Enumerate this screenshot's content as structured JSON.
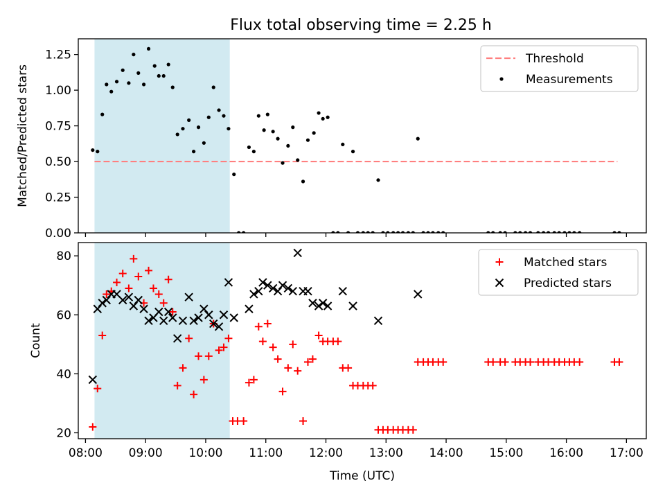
{
  "figure": {
    "title": "Flux total observing time = 2.25 h"
  },
  "colors": {
    "highlight": "#add8e6",
    "threshold": "#ff7f7f",
    "measurements": "#000000",
    "matched": "#ff0000",
    "predicted": "#000000"
  },
  "chart_data": [
    {
      "type": "scatter",
      "title": "Flux total observing time = 2.25 h",
      "xlabel": "",
      "ylabel": "Matched/Predicted stars",
      "x_unit": "hours UTC",
      "xlim": [
        7.88,
        17.33
      ],
      "ylim": [
        0,
        1.36
      ],
      "yticks": [
        0,
        0.25,
        0.5,
        0.75,
        1.0,
        1.25
      ],
      "ytick_labels": [
        "0.00",
        "0.25",
        "0.50",
        "0.75",
        "1.00",
        "1.25"
      ],
      "highlight_span": [
        8.15,
        10.4
      ],
      "legend_position": "top-right",
      "series": [
        {
          "name": "Threshold",
          "kind": "dashed-line",
          "color": "#ff7f7f",
          "points": [
            [
              8.15,
              0.5
            ],
            [
              16.85,
              0.5
            ]
          ]
        },
        {
          "name": "Measurements",
          "kind": "dot",
          "color": "#000000",
          "points": [
            [
              8.12,
              0.58
            ],
            [
              8.2,
              0.57
            ],
            [
              8.28,
              0.83
            ],
            [
              8.35,
              1.04
            ],
            [
              8.43,
              0.99
            ],
            [
              8.52,
              1.06
            ],
            [
              8.62,
              1.14
            ],
            [
              8.72,
              1.05
            ],
            [
              8.8,
              1.25
            ],
            [
              8.88,
              1.12
            ],
            [
              8.97,
              1.04
            ],
            [
              9.05,
              1.29
            ],
            [
              9.15,
              1.17
            ],
            [
              9.22,
              1.1
            ],
            [
              9.3,
              1.1
            ],
            [
              9.38,
              1.18
            ],
            [
              9.45,
              1.02
            ],
            [
              9.53,
              0.69
            ],
            [
              9.62,
              0.73
            ],
            [
              9.72,
              0.79
            ],
            [
              9.8,
              0.57
            ],
            [
              9.88,
              0.74
            ],
            [
              9.97,
              0.63
            ],
            [
              10.05,
              0.81
            ],
            [
              10.13,
              1.02
            ],
            [
              10.22,
              0.86
            ],
            [
              10.3,
              0.82
            ],
            [
              10.38,
              0.73
            ],
            [
              10.47,
              0.41
            ],
            [
              10.55,
              0.0
            ],
            [
              10.63,
              0.0
            ],
            [
              10.72,
              0.6
            ],
            [
              10.8,
              0.57
            ],
            [
              10.88,
              0.82
            ],
            [
              10.97,
              0.72
            ],
            [
              11.03,
              0.83
            ],
            [
              11.12,
              0.71
            ],
            [
              11.2,
              0.66
            ],
            [
              11.28,
              0.49
            ],
            [
              11.37,
              0.61
            ],
            [
              11.45,
              0.74
            ],
            [
              11.53,
              0.51
            ],
            [
              11.62,
              0.36
            ],
            [
              11.7,
              0.65
            ],
            [
              11.8,
              0.7
            ],
            [
              11.88,
              0.84
            ],
            [
              11.95,
              0.8
            ],
            [
              12.03,
              0.81
            ],
            [
              12.12,
              0.0
            ],
            [
              12.2,
              0.0
            ],
            [
              12.28,
              0.62
            ],
            [
              12.37,
              0.0
            ],
            [
              12.45,
              0.57
            ],
            [
              12.53,
              0.0
            ],
            [
              12.62,
              0.0
            ],
            [
              12.7,
              0.0
            ],
            [
              12.78,
              0.0
            ],
            [
              12.87,
              0.37
            ],
            [
              12.95,
              0.0
            ],
            [
              13.03,
              0.0
            ],
            [
              13.12,
              0.0
            ],
            [
              13.2,
              0.0
            ],
            [
              13.28,
              0.0
            ],
            [
              13.37,
              0.0
            ],
            [
              13.45,
              0.0
            ],
            [
              13.53,
              0.66
            ],
            [
              13.62,
              0.0
            ],
            [
              13.7,
              0.0
            ],
            [
              13.78,
              0.0
            ],
            [
              13.87,
              0.0
            ],
            [
              13.95,
              0.0
            ],
            [
              14.7,
              0.0
            ],
            [
              14.78,
              0.0
            ],
            [
              14.9,
              0.0
            ],
            [
              14.98,
              0.0
            ],
            [
              15.15,
              0.0
            ],
            [
              15.23,
              0.0
            ],
            [
              15.32,
              0.0
            ],
            [
              15.4,
              0.0
            ],
            [
              15.53,
              0.0
            ],
            [
              15.62,
              0.0
            ],
            [
              15.7,
              0.0
            ],
            [
              15.8,
              0.0
            ],
            [
              15.88,
              0.0
            ],
            [
              15.97,
              0.0
            ],
            [
              16.05,
              0.0
            ],
            [
              16.13,
              0.0
            ],
            [
              16.22,
              0.0
            ],
            [
              16.8,
              0.0
            ],
            [
              16.88,
              0.0
            ]
          ]
        }
      ]
    },
    {
      "type": "scatter",
      "title": "",
      "xlabel": "Time (UTC)",
      "ylabel": "Count",
      "x_unit": "hours UTC",
      "xlim": [
        7.88,
        17.33
      ],
      "ylim": [
        18,
        84.5
      ],
      "yticks": [
        20,
        40,
        60,
        80
      ],
      "ytick_labels": [
        "20",
        "40",
        "60",
        "80"
      ],
      "xticks": [
        8,
        9,
        10,
        11,
        12,
        13,
        14,
        15,
        16,
        17
      ],
      "xtick_labels": [
        "08:00",
        "09:00",
        "10:00",
        "11:00",
        "12:00",
        "13:00",
        "14:00",
        "15:00",
        "16:00",
        "17:00"
      ],
      "highlight_span": [
        8.15,
        10.4
      ],
      "legend_position": "top-right",
      "series": [
        {
          "name": "Matched stars",
          "kind": "plus",
          "color": "#ff0000",
          "points": [
            [
              8.12,
              22
            ],
            [
              8.2,
              35
            ],
            [
              8.28,
              53
            ],
            [
              8.35,
              67
            ],
            [
              8.43,
              68
            ],
            [
              8.52,
              71
            ],
            [
              8.62,
              74
            ],
            [
              8.72,
              69
            ],
            [
              8.8,
              79
            ],
            [
              8.88,
              73
            ],
            [
              8.97,
              64
            ],
            [
              9.05,
              75
            ],
            [
              9.13,
              69
            ],
            [
              9.22,
              67
            ],
            [
              9.3,
              64
            ],
            [
              9.38,
              72
            ],
            [
              9.45,
              61
            ],
            [
              9.53,
              36
            ],
            [
              9.62,
              42
            ],
            [
              9.72,
              52
            ],
            [
              9.8,
              33
            ],
            [
              9.88,
              46
            ],
            [
              9.97,
              38
            ],
            [
              10.05,
              46
            ],
            [
              10.13,
              57
            ],
            [
              10.22,
              48
            ],
            [
              10.3,
              49
            ],
            [
              10.38,
              52
            ],
            [
              10.45,
              24
            ],
            [
              10.53,
              24
            ],
            [
              10.63,
              24
            ],
            [
              10.72,
              37
            ],
            [
              10.8,
              38
            ],
            [
              10.88,
              56
            ],
            [
              10.95,
              51
            ],
            [
              11.03,
              57
            ],
            [
              11.12,
              49
            ],
            [
              11.2,
              45
            ],
            [
              11.28,
              34
            ],
            [
              11.37,
              42
            ],
            [
              11.45,
              50
            ],
            [
              11.53,
              41
            ],
            [
              11.62,
              24
            ],
            [
              11.7,
              44
            ],
            [
              11.78,
              45
            ],
            [
              11.88,
              53
            ],
            [
              11.95,
              51
            ],
            [
              12.03,
              51
            ],
            [
              12.12,
              51
            ],
            [
              12.2,
              51
            ],
            [
              12.28,
              42
            ],
            [
              12.37,
              42
            ],
            [
              12.45,
              36
            ],
            [
              12.53,
              36
            ],
            [
              12.62,
              36
            ],
            [
              12.7,
              36
            ],
            [
              12.78,
              36
            ],
            [
              12.87,
              21
            ],
            [
              12.95,
              21
            ],
            [
              13.03,
              21
            ],
            [
              13.12,
              21
            ],
            [
              13.2,
              21
            ],
            [
              13.28,
              21
            ],
            [
              13.37,
              21
            ],
            [
              13.45,
              21
            ],
            [
              13.53,
              44
            ],
            [
              13.62,
              44
            ],
            [
              13.7,
              44
            ],
            [
              13.78,
              44
            ],
            [
              13.87,
              44
            ],
            [
              13.95,
              44
            ],
            [
              14.7,
              44
            ],
            [
              14.78,
              44
            ],
            [
              14.9,
              44
            ],
            [
              14.98,
              44
            ],
            [
              15.15,
              44
            ],
            [
              15.23,
              44
            ],
            [
              15.32,
              44
            ],
            [
              15.4,
              44
            ],
            [
              15.53,
              44
            ],
            [
              15.62,
              44
            ],
            [
              15.7,
              44
            ],
            [
              15.8,
              44
            ],
            [
              15.88,
              44
            ],
            [
              15.97,
              44
            ],
            [
              16.05,
              44
            ],
            [
              16.13,
              44
            ],
            [
              16.22,
              44
            ],
            [
              16.8,
              44
            ],
            [
              16.88,
              44
            ]
          ]
        },
        {
          "name": "Predicted stars",
          "kind": "cross",
          "color": "#000000",
          "points": [
            [
              8.12,
              38
            ],
            [
              8.2,
              62
            ],
            [
              8.28,
              64
            ],
            [
              8.35,
              65
            ],
            [
              8.43,
              67
            ],
            [
              8.52,
              67
            ],
            [
              8.62,
              65
            ],
            [
              8.72,
              66
            ],
            [
              8.8,
              63
            ],
            [
              8.88,
              65
            ],
            [
              8.97,
              62
            ],
            [
              9.05,
              58
            ],
            [
              9.13,
              59
            ],
            [
              9.22,
              61
            ],
            [
              9.3,
              58
            ],
            [
              9.38,
              61
            ],
            [
              9.45,
              59
            ],
            [
              9.53,
              52
            ],
            [
              9.62,
              58
            ],
            [
              9.72,
              66
            ],
            [
              9.8,
              58
            ],
            [
              9.88,
              59
            ],
            [
              9.97,
              62
            ],
            [
              10.05,
              60
            ],
            [
              10.13,
              57
            ],
            [
              10.22,
              56
            ],
            [
              10.3,
              60
            ],
            [
              10.38,
              71
            ],
            [
              10.47,
              59
            ],
            [
              10.72,
              62
            ],
            [
              10.8,
              67
            ],
            [
              10.88,
              68
            ],
            [
              10.95,
              71
            ],
            [
              11.03,
              70
            ],
            [
              11.12,
              69
            ],
            [
              11.2,
              68
            ],
            [
              11.28,
              70
            ],
            [
              11.37,
              69
            ],
            [
              11.45,
              68
            ],
            [
              11.53,
              81
            ],
            [
              11.62,
              68
            ],
            [
              11.7,
              68
            ],
            [
              11.78,
              64
            ],
            [
              11.88,
              63
            ],
            [
              11.95,
              64
            ],
            [
              12.03,
              63
            ],
            [
              12.28,
              68
            ],
            [
              12.45,
              63
            ],
            [
              12.87,
              58
            ],
            [
              13.53,
              67
            ]
          ]
        }
      ]
    }
  ]
}
